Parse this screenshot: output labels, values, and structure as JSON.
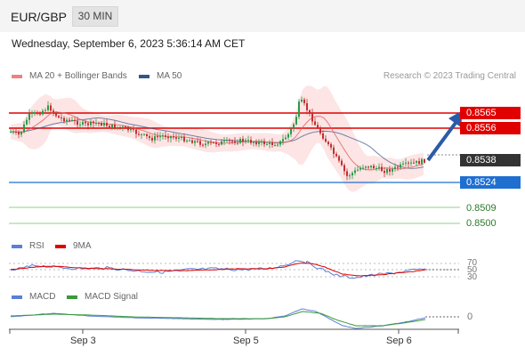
{
  "header": {
    "symbol": "EUR/GBP",
    "timeframe": "30 MIN"
  },
  "datetime": "Wednesday, September 6, 2023 5:36:14 AM CET",
  "legend": {
    "ma20": {
      "label": "MA 20 + Bollinger Bands",
      "color": "#f08080"
    },
    "ma50": {
      "label": "MA 50",
      "color": "#34558b"
    }
  },
  "copyright": "Research © 2023 Trading Central",
  "price_labels": {
    "r2": "0.8565",
    "r1": "0.8556",
    "last": "0.8538",
    "pivot": "0.8524",
    "s1": "0.8509",
    "s2": "0.8500"
  },
  "colors": {
    "resistance": "#e00000",
    "pivot": "#1f6fd1",
    "support": "#3a9a3a",
    "last": "#333333",
    "arrow": "#2b5ba8"
  },
  "indicators": {
    "rsi": {
      "label": "RSI",
      "ma_label": "9MA",
      "levels": [
        "70",
        "50",
        "30"
      ],
      "color": "#5b7fd6",
      "ma_color": "#e00000"
    },
    "macd": {
      "label": "MACD",
      "signal_label": "MACD Signal",
      "zero": "0",
      "color": "#5b7fd6",
      "signal_color": "#3a9a3a"
    }
  },
  "x_axis": [
    "Sep 3",
    "Sep 5",
    "Sep 6"
  ]
}
